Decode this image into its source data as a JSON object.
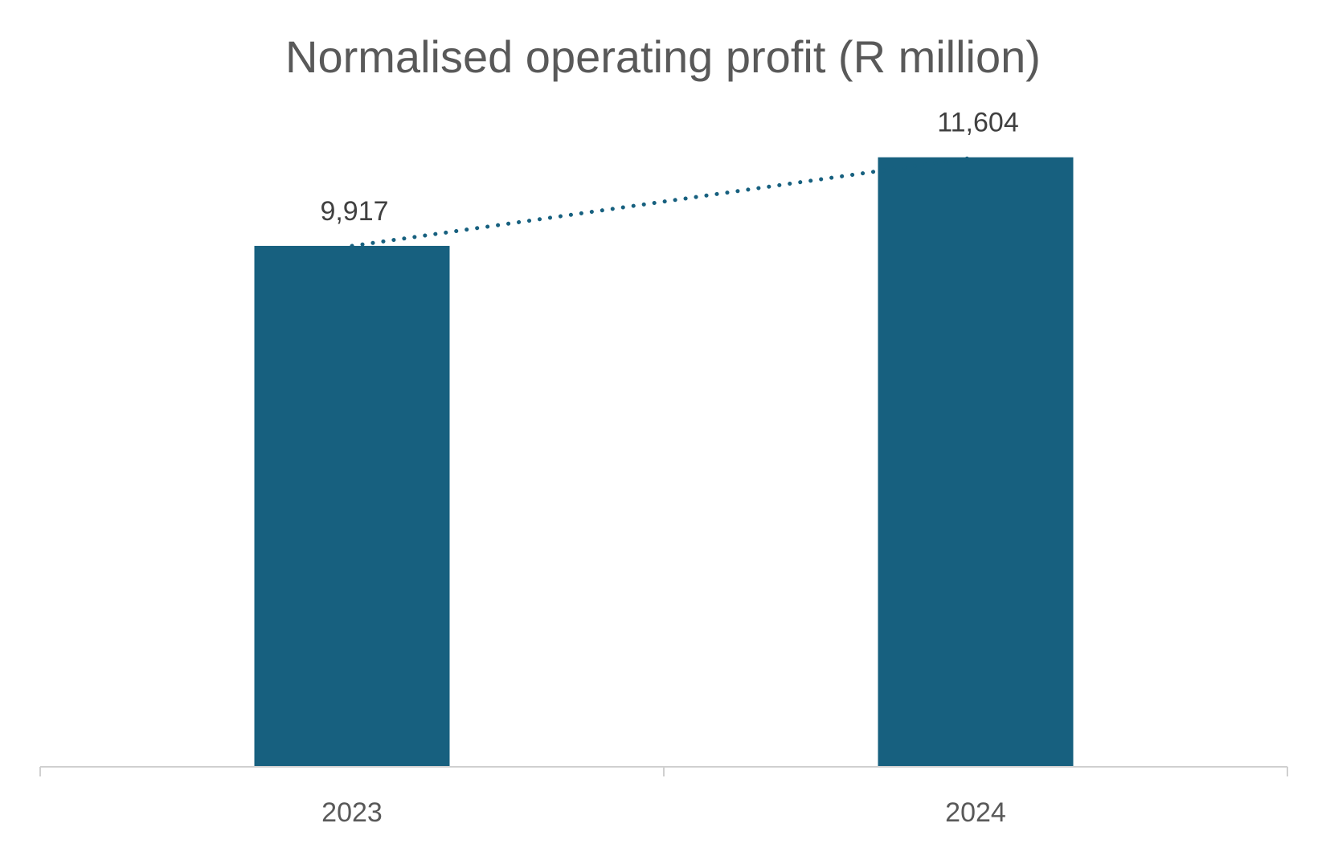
{
  "chart_data": {
    "type": "bar",
    "title": "Normalised operating profit (R million)",
    "categories": [
      "2023",
      "2024"
    ],
    "values": [
      9917,
      11604
    ],
    "data_labels": [
      "9,917",
      "11,604"
    ],
    "xlabel": "",
    "ylabel": "",
    "ylim": [
      0,
      14000
    ],
    "grid": false,
    "legend": "none",
    "trendline": "dotted",
    "colors": {
      "bar": "#17607f",
      "trendline": "#17607f",
      "axis": "#d0d0d0"
    }
  }
}
